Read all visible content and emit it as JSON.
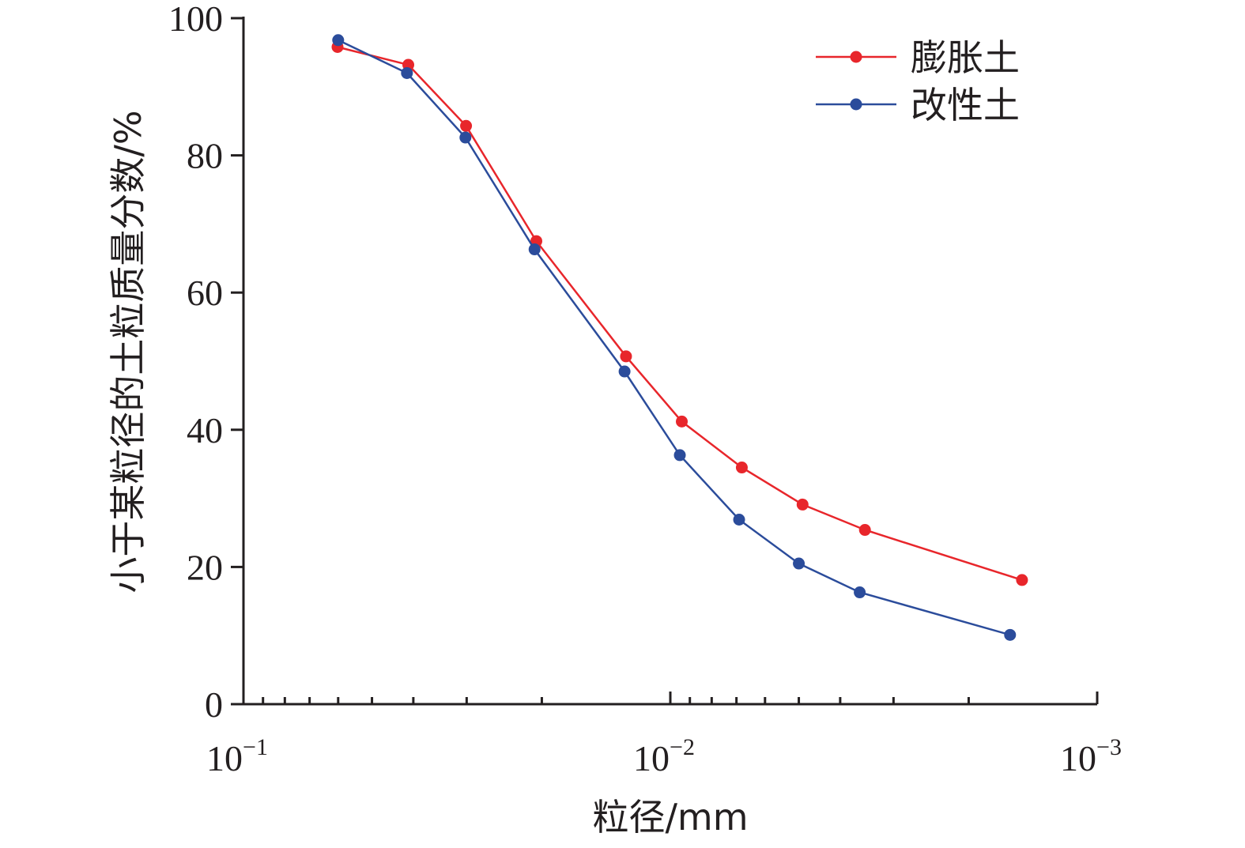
{
  "chart_data": {
    "type": "line",
    "xlabel": "粒径/mm",
    "ylabel": "小于某粒径的土粒质量分数/%",
    "x_scale": "log",
    "x_reversed": true,
    "xlim": [
      0.1,
      0.001
    ],
    "ylim": [
      0,
      100
    ],
    "x_ticks": [
      {
        "value": 0.1,
        "base": "10",
        "exp": "−1"
      },
      {
        "value": 0.01,
        "base": "10",
        "exp": "−2"
      },
      {
        "value": 0.001,
        "base": "10",
        "exp": "−3"
      }
    ],
    "y_ticks": [
      0,
      20,
      40,
      60,
      80,
      100
    ],
    "grid": false,
    "legend_position": "top-right",
    "series": [
      {
        "name": "膨胀土",
        "color": "#e8262b",
        "x": [
          0.0602,
          0.0411,
          0.0301,
          0.0206,
          0.0127,
          0.0094,
          0.0068,
          0.0049,
          0.0035,
          0.0015
        ],
        "y": [
          95.8,
          93.2,
          84.3,
          67.5,
          50.7,
          41.2,
          34.5,
          29.1,
          25.4,
          18.1
        ]
      },
      {
        "name": "改性土",
        "color": "#2b4c9b",
        "x": [
          0.06,
          0.0414,
          0.0302,
          0.0208,
          0.0128,
          0.0095,
          0.0069,
          0.005,
          0.0036,
          0.0016
        ],
        "y": [
          96.8,
          92.0,
          82.6,
          66.3,
          48.5,
          36.3,
          26.9,
          20.5,
          16.3,
          10.1
        ]
      }
    ]
  }
}
